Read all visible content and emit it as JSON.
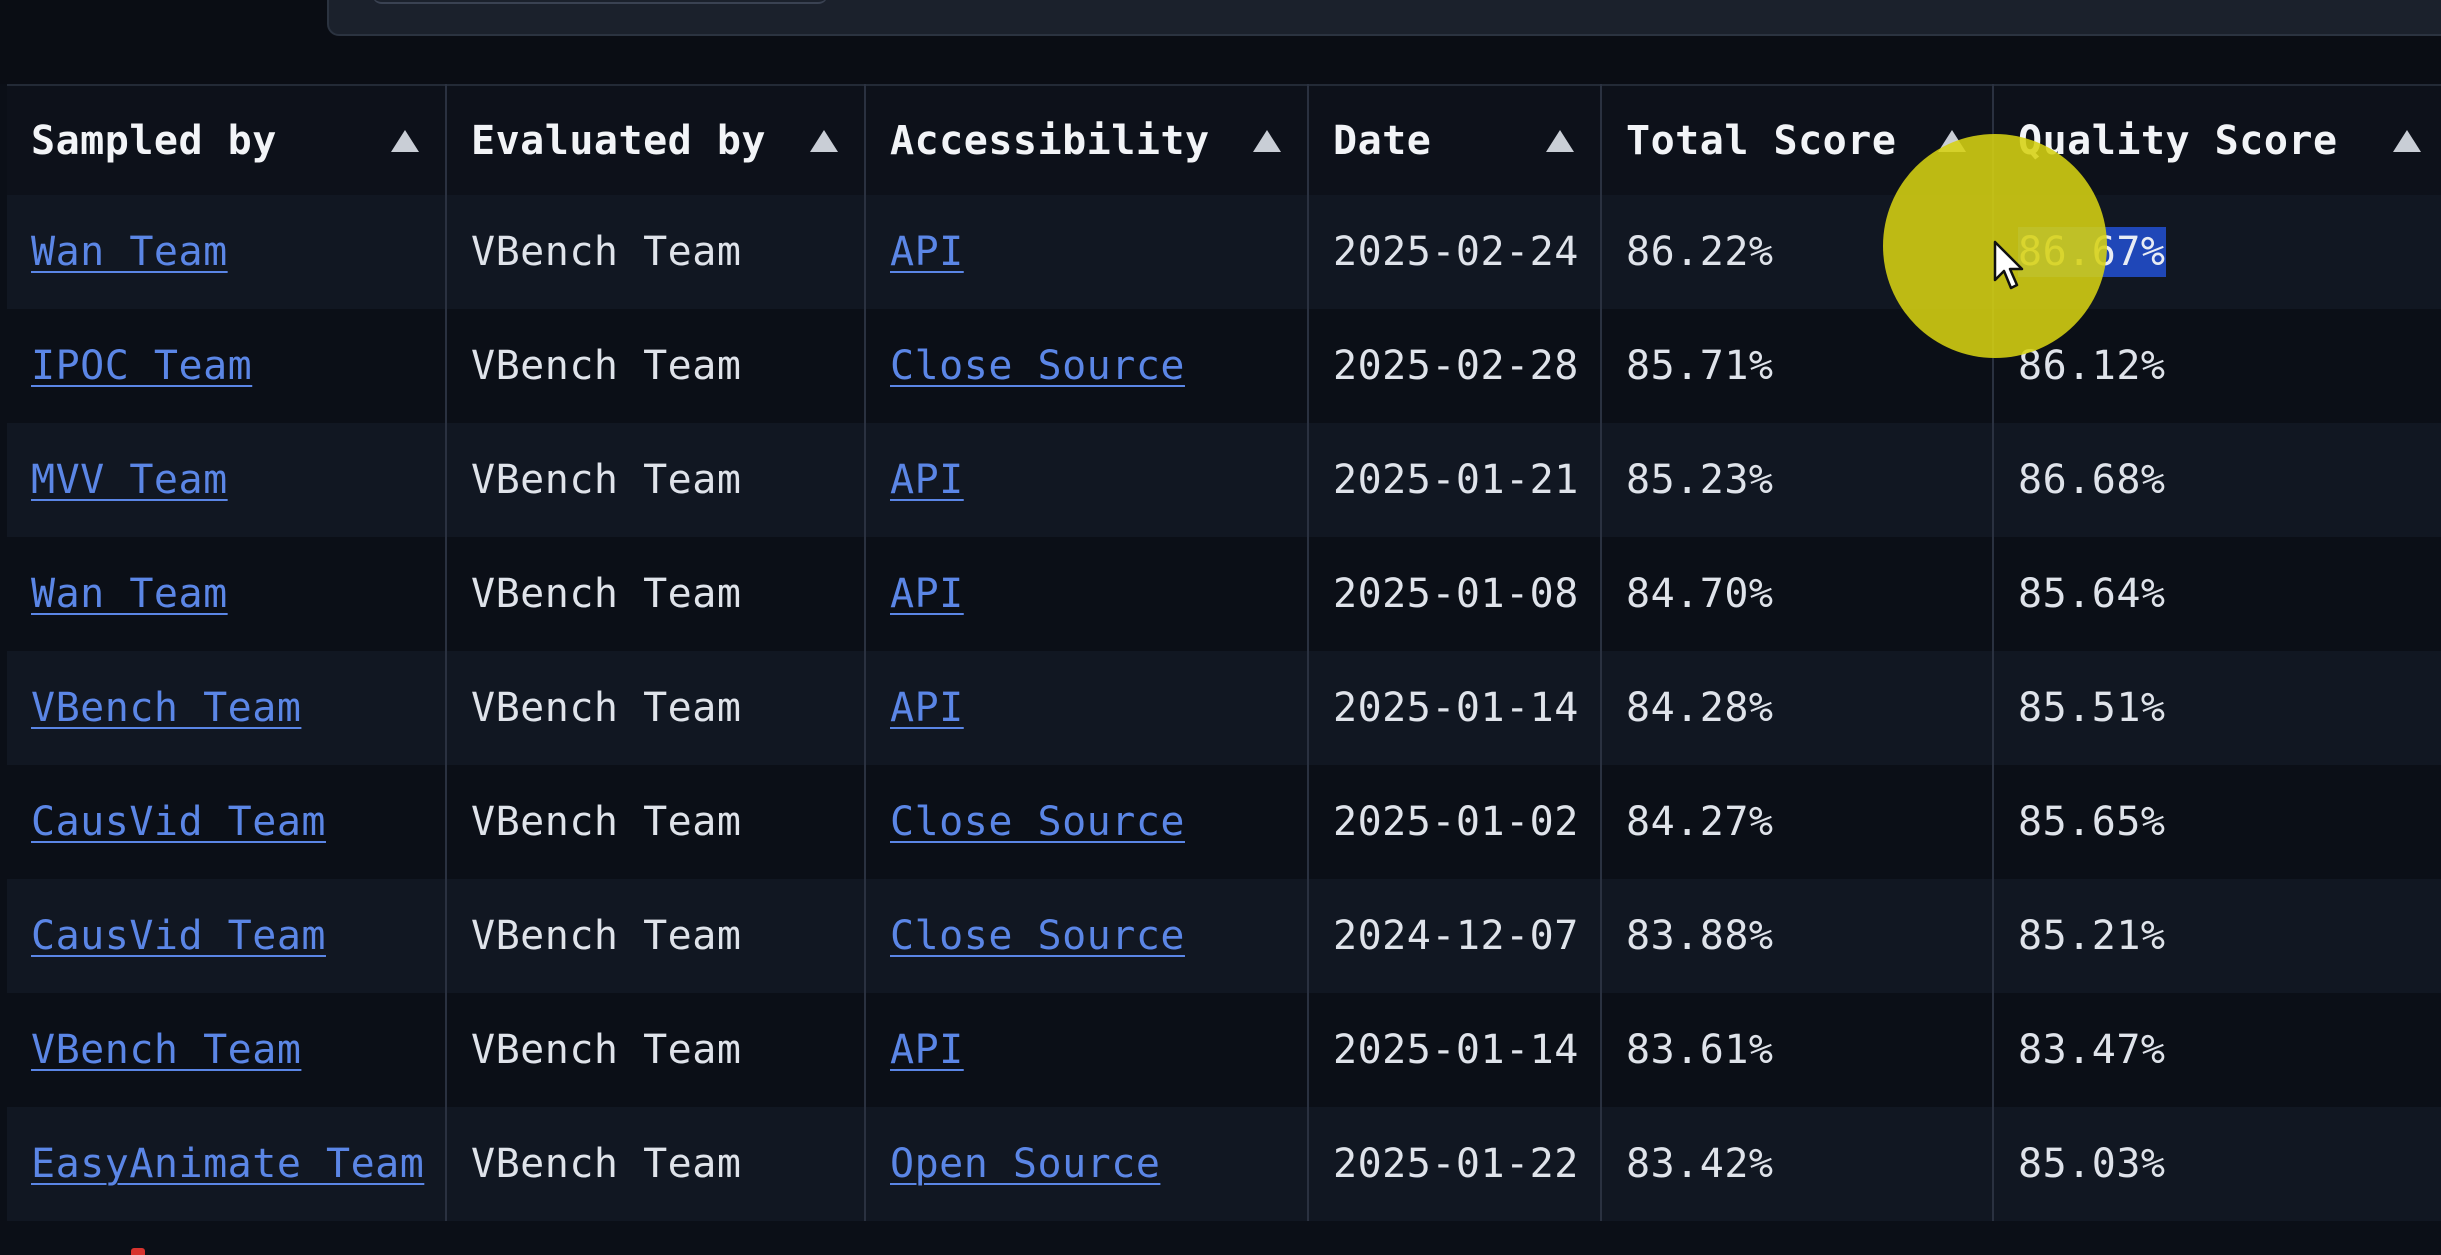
{
  "columns": [
    {
      "label": "Sampled by"
    },
    {
      "label": "Evaluated by"
    },
    {
      "label": "Accessibility"
    },
    {
      "label": "Date"
    },
    {
      "label": "Total Score"
    },
    {
      "label": "Quality Score"
    }
  ],
  "sort_icon": "triangle-up-icon",
  "rows": [
    {
      "sampled_by": "Wan Team",
      "evaluated_by": "VBench Team",
      "accessibility": "API",
      "date": "2025-02-24",
      "total_score": "86.22%",
      "quality_score": "86.67%"
    },
    {
      "sampled_by": "IPOC Team",
      "evaluated_by": "VBench Team",
      "accessibility": "Close Source",
      "date": "2025-02-28",
      "total_score": "85.71%",
      "quality_score": "86.12%"
    },
    {
      "sampled_by": "MVV Team",
      "evaluated_by": "VBench Team",
      "accessibility": "API",
      "date": "2025-01-21",
      "total_score": "85.23%",
      "quality_score": "86.68%"
    },
    {
      "sampled_by": "Wan Team",
      "evaluated_by": "VBench Team",
      "accessibility": "API",
      "date": "2025-01-08",
      "total_score": "84.70%",
      "quality_score": "85.64%"
    },
    {
      "sampled_by": "VBench Team",
      "evaluated_by": "VBench Team",
      "accessibility": "API",
      "date": "2025-01-14",
      "total_score": "84.28%",
      "quality_score": "85.51%"
    },
    {
      "sampled_by": "CausVid Team",
      "evaluated_by": "VBench Team",
      "accessibility": "Close Source",
      "date": "2025-01-02",
      "total_score": "84.27%",
      "quality_score": "85.65%"
    },
    {
      "sampled_by": "CausVid Team",
      "evaluated_by": "VBench Team",
      "accessibility": "Close Source",
      "date": "2024-12-07",
      "total_score": "83.88%",
      "quality_score": "85.21%"
    },
    {
      "sampled_by": "VBench Team",
      "evaluated_by": "VBench Team",
      "accessibility": "API",
      "date": "2025-01-14",
      "total_score": "83.61%",
      "quality_score": "83.47%"
    },
    {
      "sampled_by": "EasyAnimate Team",
      "evaluated_by": "VBench Team",
      "accessibility": "Open Source",
      "date": "2025-01-22",
      "total_score": "83.42%",
      "quality_score": "85.03%"
    }
  ],
  "selection": {
    "row": 0,
    "column": "quality_score"
  },
  "colors": {
    "background": "#0b0f17",
    "row_alt": "#111722",
    "link": "#5b86e6",
    "text": "#dfe3ea",
    "header_text": "#f2f4f7",
    "selection": "#1f47b8",
    "cursor_highlight": "#d6d212"
  }
}
